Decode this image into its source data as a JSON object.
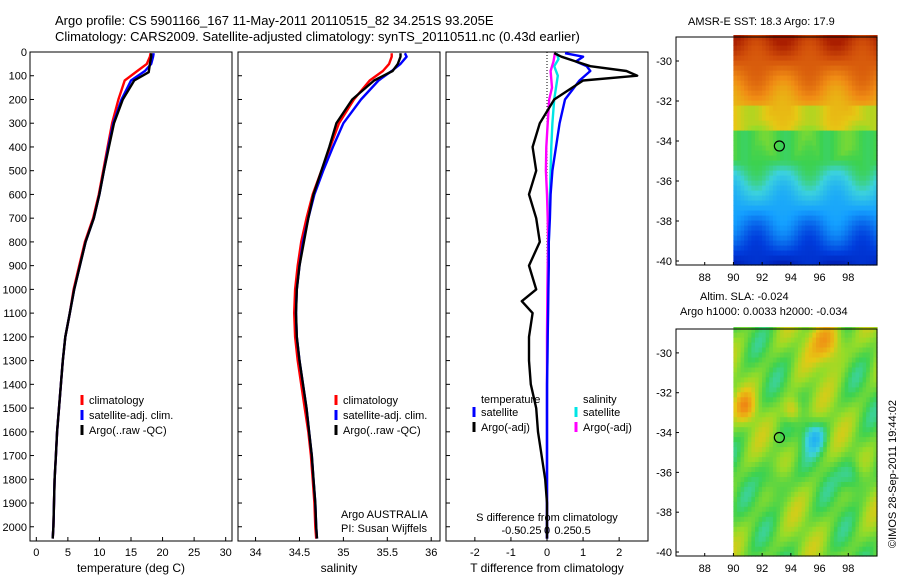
{
  "header": {
    "line1": "Argo profile: CS 5901166_167 11-May-2011 20110515_82 34.251S 93.205E",
    "line2": "Climatology: CARS2009. Satellite-adjusted climatology: synTS_20110511.nc (0.43d earlier)"
  },
  "sst_title": "AMSR-E SST: 18.3 Argo: 17.9",
  "sla_title1": "Altim. SLA: -0.024",
  "sla_title2": "Argo h1000: 0.0033 h2000: -0.034",
  "credit": "©IMOS 28-Sep-2011 19:44:02",
  "colors": {
    "climatology": "#ff0000",
    "satellite": "#0000ff",
    "argo": "#000000",
    "sat_s": "#00e5e5",
    "argo_s": "#ff00ff"
  },
  "chart_data": [
    {
      "type": "line",
      "id": "temp",
      "xlabel": "temperature (deg C)",
      "ylabel": "",
      "xlim": [
        -1,
        31
      ],
      "ylim": [
        2060,
        0
      ],
      "xticks": [
        0,
        5,
        10,
        15,
        20,
        25,
        30
      ],
      "yticks": [
        0,
        100,
        200,
        300,
        400,
        500,
        600,
        700,
        800,
        900,
        1000,
        1100,
        1200,
        1300,
        1400,
        1500,
        1600,
        1700,
        1800,
        1900,
        2000
      ],
      "legend": [
        "climatology",
        "satellite-adj. clim.",
        "Argo(..raw -QC)"
      ],
      "series": [
        {
          "name": "climatology",
          "x": [
            18.1,
            18.0,
            17.5,
            16.0,
            14.0,
            13.0,
            12.0,
            11.3,
            10.6,
            9.9,
            9.0,
            7.7,
            6.8,
            5.9,
            5.3,
            4.6,
            4.2,
            3.9,
            3.6,
            3.3,
            3.1,
            2.9,
            2.8,
            2.7,
            2.6
          ],
          "y": [
            5,
            20,
            50,
            80,
            120,
            200,
            300,
            400,
            500,
            600,
            700,
            800,
            900,
            1000,
            1100,
            1200,
            1300,
            1400,
            1500,
            1600,
            1700,
            1800,
            1900,
            2000,
            2050
          ]
        },
        {
          "name": "satellite-adj. clim.",
          "x": [
            18.6,
            18.5,
            18.2,
            17.2,
            15.0,
            13.5,
            12.2,
            11.4,
            10.7,
            10.0,
            9.1,
            7.8,
            6.9,
            6.0,
            5.3,
            4.6,
            4.2,
            3.9,
            3.6,
            3.3,
            3.1,
            2.9,
            2.8,
            2.7,
            2.6
          ],
          "y": [
            5,
            20,
            50,
            80,
            120,
            200,
            300,
            400,
            500,
            600,
            700,
            800,
            900,
            1000,
            1100,
            1200,
            1300,
            1400,
            1500,
            1600,
            1700,
            1800,
            1900,
            2000,
            2050
          ]
        },
        {
          "name": "Argo(..raw -QC)",
          "x": [
            18.2,
            18.2,
            18.0,
            17.8,
            15.5,
            13.7,
            12.3,
            11.5,
            10.7,
            10.0,
            9.1,
            7.8,
            6.9,
            6.0,
            5.3,
            4.6,
            4.2,
            3.9,
            3.6,
            3.3,
            3.1,
            2.9,
            2.8,
            2.7,
            2.6
          ],
          "y": [
            5,
            20,
            50,
            85,
            120,
            200,
            300,
            400,
            500,
            600,
            700,
            800,
            900,
            1000,
            1100,
            1200,
            1300,
            1400,
            1500,
            1600,
            1700,
            1800,
            1900,
            2000,
            2050
          ]
        }
      ]
    },
    {
      "type": "line",
      "id": "sal",
      "xlabel": "salinity",
      "xlim": [
        33.8,
        36.1
      ],
      "ylim": [
        2060,
        0
      ],
      "xticks": [
        34,
        34.5,
        35,
        35.5,
        36
      ],
      "legend": [
        "climatology",
        "satellite-adj. clim.",
        "Argo(..raw -QC)"
      ],
      "annotation1": "Argo AUSTRALIA",
      "annotation2": "PI: Susan Wijffels",
      "series": [
        {
          "name": "climatology",
          "x": [
            35.55,
            35.55,
            35.52,
            35.45,
            35.3,
            35.12,
            34.95,
            34.85,
            34.75,
            34.65,
            34.58,
            34.52,
            34.48,
            34.45,
            34.44,
            34.45,
            34.48,
            34.52,
            34.56,
            34.6,
            34.63,
            34.65,
            34.67,
            34.68,
            34.69
          ],
          "y": [
            5,
            20,
            50,
            80,
            120,
            200,
            300,
            400,
            500,
            600,
            700,
            800,
            900,
            1000,
            1100,
            1200,
            1300,
            1400,
            1500,
            1600,
            1700,
            1800,
            1900,
            2000,
            2050
          ]
        },
        {
          "name": "satellite-adj. clim.",
          "x": [
            35.7,
            35.72,
            35.65,
            35.55,
            35.4,
            35.2,
            35.0,
            34.88,
            34.77,
            34.67,
            34.6,
            34.54,
            34.5,
            34.47,
            34.46,
            34.47,
            34.5,
            34.54,
            34.58,
            34.61,
            34.64,
            34.66,
            34.68,
            34.69,
            34.7
          ],
          "y": [
            5,
            20,
            50,
            80,
            120,
            200,
            300,
            400,
            500,
            600,
            700,
            800,
            900,
            1000,
            1100,
            1200,
            1300,
            1400,
            1500,
            1600,
            1700,
            1800,
            1900,
            2000,
            2050
          ]
        },
        {
          "name": "Argo(..raw -QC)",
          "x": [
            35.65,
            35.65,
            35.62,
            35.56,
            35.35,
            35.1,
            34.92,
            34.84,
            34.75,
            34.66,
            34.6,
            34.55,
            34.5,
            34.47,
            34.46,
            34.47,
            34.5,
            34.54,
            34.58,
            34.61,
            34.64,
            34.66,
            34.68,
            34.69,
            34.7
          ],
          "y": [
            5,
            20,
            50,
            80,
            120,
            200,
            300,
            400,
            500,
            600,
            700,
            800,
            900,
            1000,
            1100,
            1200,
            1300,
            1400,
            1500,
            1600,
            1700,
            1800,
            1900,
            2000,
            2050
          ]
        }
      ]
    },
    {
      "type": "line",
      "id": "diff",
      "xlabel": "T difference from climatology",
      "xlabel_top": "S difference from climatology",
      "xlim": [
        -2.8,
        2.8
      ],
      "ylim": [
        2060,
        0
      ],
      "xticks": [
        -2,
        -1,
        0,
        1,
        2
      ],
      "xticks_top": [
        -0.5,
        -0.25,
        0,
        0.25,
        0.5
      ],
      "legend_temp": {
        "title": "temperature",
        "items": [
          "satellite",
          "Argo(-adj)"
        ]
      },
      "legend_sal": {
        "title": "salinity",
        "items": [
          "satellite",
          "Argo(-adj)"
        ]
      },
      "series": [
        {
          "name": "T satellite",
          "x": [
            0.5,
            1.0,
            0.8,
            1.1,
            1.2,
            0.9,
            0.5,
            0.35,
            0.25,
            0.15,
            0.1,
            0.08,
            0.05,
            0.05,
            0.04,
            0.03,
            0.02,
            0.01,
            0.0,
            0.0,
            0.0,
            0.0,
            0.0,
            0.0
          ],
          "y": [
            5,
            20,
            40,
            60,
            80,
            120,
            200,
            300,
            400,
            500,
            600,
            700,
            800,
            900,
            1000,
            1100,
            1200,
            1300,
            1400,
            1500,
            1600,
            1700,
            1800,
            2050
          ]
        },
        {
          "name": "T Argo(-adj)",
          "x": [
            0.2,
            0.4,
            0.8,
            1.2,
            2.2,
            2.5,
            1.0,
            0.2,
            -0.2,
            -0.4,
            -0.3,
            -0.5,
            -0.3,
            -0.2,
            -0.5,
            -0.3,
            -0.7,
            -0.4,
            -0.5,
            -0.5,
            -0.45,
            -0.3,
            -0.25,
            -0.15,
            -0.05,
            0.0,
            0.0
          ],
          "y": [
            5,
            20,
            40,
            60,
            80,
            100,
            120,
            200,
            300,
            400,
            500,
            600,
            700,
            800,
            900,
            1000,
            1050,
            1100,
            1200,
            1300,
            1400,
            1500,
            1600,
            1700,
            1800,
            1900,
            2050
          ]
        },
        {
          "name": "S satellite",
          "x": [
            0.27,
            0.32,
            0.2,
            0.3,
            0.2,
            0.15,
            0.12,
            0.1,
            0.08,
            0.06,
            0.05,
            0.04,
            0.03,
            0.02,
            0.01,
            0.0,
            0.0,
            0.0,
            0.0
          ],
          "y": [
            5,
            30,
            60,
            100,
            200,
            300,
            400,
            500,
            600,
            700,
            800,
            900,
            1000,
            1100,
            1300,
            1500,
            1700,
            1900,
            2050
          ]
        },
        {
          "name": "S Argo(-adj)",
          "x": [
            0.22,
            0.18,
            0.1,
            0.14,
            0.06,
            0.02,
            -0.02,
            -0.03,
            0.0,
            0.02,
            0.03,
            0.02,
            0.01,
            0.0,
            0.0,
            0.0,
            0.0
          ],
          "y": [
            5,
            40,
            80,
            150,
            200,
            300,
            400,
            500,
            600,
            700,
            800,
            900,
            1000,
            1200,
            1500,
            1800,
            2050
          ]
        }
      ]
    },
    {
      "type": "heatmap",
      "id": "sst_map",
      "xlim": [
        86,
        100
      ],
      "ylim": [
        -40.2,
        -28.8
      ],
      "xticks": [
        88,
        90,
        92,
        94,
        96,
        98
      ],
      "yticks": [
        -30,
        -32,
        -34,
        -36,
        -38,
        -40
      ],
      "data_xlim": [
        90,
        100
      ],
      "marker": [
        93.2,
        -34.25
      ]
    },
    {
      "type": "heatmap",
      "id": "sla_map",
      "xlim": [
        86,
        100
      ],
      "ylim": [
        -40.2,
        -28.8
      ],
      "xticks": [
        88,
        90,
        92,
        94,
        96,
        98
      ],
      "yticks": [
        -30,
        -32,
        -34,
        -36,
        -38,
        -40
      ],
      "data_xlim": [
        90,
        100
      ],
      "marker": [
        93.2,
        -34.25
      ]
    }
  ]
}
